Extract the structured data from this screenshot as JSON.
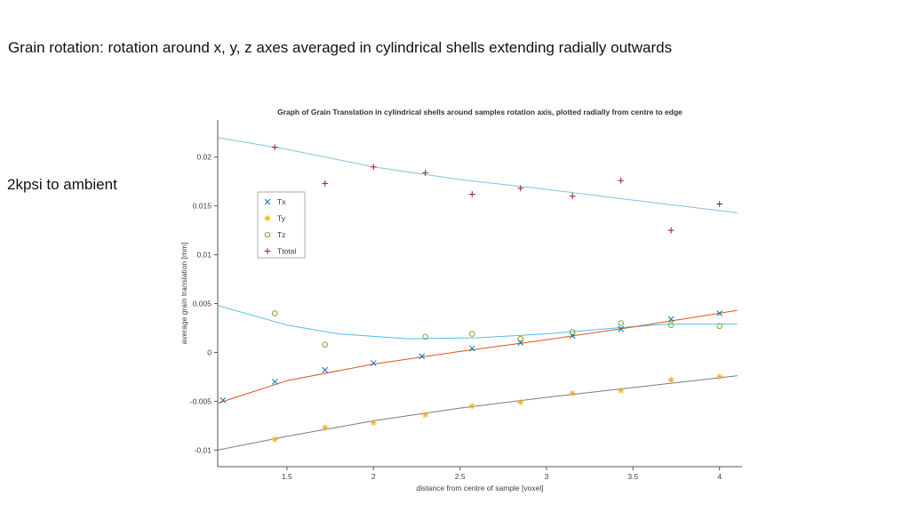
{
  "slide": {
    "title": "Grain rotation: rotation around x, y, z axes averaged in cylindrical shells extending radially outwards",
    "side_label": "2kpsi to ambient"
  },
  "chart_data": {
    "type": "scatter",
    "title": "Graph of Grain Translation in cylindrical shells around  samples rotation axis, plotted radially from centre to edge",
    "xlabel": "distance from centre of sample [voxel]",
    "ylabel": "average grain translation [mm]",
    "xlim": [
      1.1,
      4.13
    ],
    "ylim": [
      -0.0117,
      0.0238
    ],
    "xticks": [
      1.5,
      2,
      2.5,
      3,
      3.5,
      4
    ],
    "xtick_labels": [
      "1.5",
      "2",
      "2.5",
      "3",
      "3.5",
      "4"
    ],
    "yticks": [
      -0.01,
      -0.005,
      0,
      0.005,
      0.01,
      0.015,
      0.02
    ],
    "ytick_labels": [
      "-0.01",
      "-0.005",
      "0",
      "0.005",
      "0.01",
      "0.015",
      "0.02"
    ],
    "grid": false,
    "legend_position": "upper-left-inside",
    "axis_color": "#555555",
    "tick_text_color": "#404040",
    "series": [
      {
        "name": "Tx",
        "marker": "x",
        "color": "#0072BD",
        "points": [
          [
            1.13,
            -0.0049
          ],
          [
            1.43,
            -0.003
          ],
          [
            1.72,
            -0.0018
          ],
          [
            2.0,
            -0.0011
          ],
          [
            2.28,
            -0.0004
          ],
          [
            2.57,
            0.0004
          ],
          [
            2.85,
            0.001
          ],
          [
            3.15,
            0.0017
          ],
          [
            3.43,
            0.0024
          ],
          [
            3.72,
            0.0034
          ],
          [
            4.0,
            0.004
          ]
        ]
      },
      {
        "name": "Ty",
        "marker": "*",
        "color": "#EDB120",
        "points": [
          [
            1.43,
            -0.0089
          ],
          [
            1.72,
            -0.0077
          ],
          [
            2.0,
            -0.0072
          ],
          [
            2.3,
            -0.0064
          ],
          [
            2.57,
            -0.0055
          ],
          [
            2.85,
            -0.0051
          ],
          [
            3.15,
            -0.0042
          ],
          [
            3.43,
            -0.0039
          ],
          [
            3.72,
            -0.0028
          ],
          [
            4.0,
            -0.0025
          ]
        ]
      },
      {
        "name": "Tz",
        "marker": "o",
        "color": "#77AC30",
        "points": [
          [
            1.43,
            0.004
          ],
          [
            1.72,
            0.0008
          ],
          [
            2.3,
            0.0016
          ],
          [
            2.57,
            0.0019
          ],
          [
            2.85,
            0.0014
          ],
          [
            3.15,
            0.0021
          ],
          [
            3.43,
            0.003
          ],
          [
            3.72,
            0.0028
          ],
          [
            4.0,
            0.0027
          ]
        ]
      },
      {
        "name": "Ttotal",
        "marker": "+",
        "color": "#A2142F",
        "points": [
          [
            1.43,
            0.021
          ],
          [
            1.72,
            0.0173
          ],
          [
            2.0,
            0.019
          ],
          [
            2.3,
            0.0184
          ],
          [
            2.57,
            0.0162
          ],
          [
            2.85,
            0.0168
          ],
          [
            3.15,
            0.016
          ],
          [
            3.43,
            0.0176
          ],
          [
            3.72,
            0.0125
          ],
          [
            4.0,
            0.0152
          ]
        ]
      }
    ],
    "fit_lines": [
      {
        "for": "Ttotal",
        "color": "#85C1DE",
        "points": [
          [
            1.1,
            0.022
          ],
          [
            1.5,
            0.0208
          ],
          [
            2.0,
            0.019
          ],
          [
            2.5,
            0.0177
          ],
          [
            3.0,
            0.0167
          ],
          [
            3.5,
            0.0156
          ],
          [
            4.1,
            0.0143
          ]
        ]
      },
      {
        "for": "Tz",
        "color": "#4DBEEE",
        "points": [
          [
            1.1,
            0.0048
          ],
          [
            1.5,
            0.0028
          ],
          [
            1.8,
            0.0019
          ],
          [
            2.2,
            0.0014
          ],
          [
            2.6,
            0.0015
          ],
          [
            3.0,
            0.0019
          ],
          [
            3.4,
            0.0025
          ],
          [
            3.7,
            0.0029
          ],
          [
            4.1,
            0.0029
          ]
        ]
      },
      {
        "for": "Tx",
        "color": "#D95319",
        "points": [
          [
            1.1,
            -0.0052
          ],
          [
            1.5,
            -0.0029
          ],
          [
            2.0,
            -0.0012
          ],
          [
            2.5,
            0.0001
          ],
          [
            3.0,
            0.0013
          ],
          [
            3.5,
            0.0026
          ],
          [
            4.1,
            0.0043
          ]
        ]
      },
      {
        "for": "Ty",
        "color": "#7a7a7a",
        "points": [
          [
            1.1,
            -0.01
          ],
          [
            1.5,
            -0.0086
          ],
          [
            2.0,
            -0.007
          ],
          [
            2.5,
            -0.0057
          ],
          [
            3.0,
            -0.0046
          ],
          [
            3.5,
            -0.0036
          ],
          [
            4.1,
            -0.0024
          ]
        ]
      }
    ]
  }
}
